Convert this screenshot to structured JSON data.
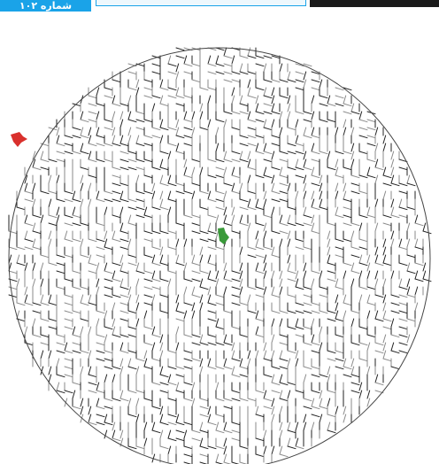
{
  "header": {
    "issue_tab": "شماره ۱۰۲"
  }
}
